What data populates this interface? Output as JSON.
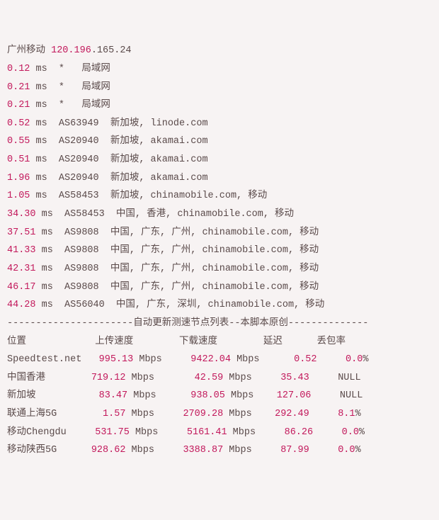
{
  "colors": {
    "background": "#f7f3f3",
    "text": "#5a4a4a",
    "accent": "#c2185b"
  },
  "header": {
    "label": "广州移动",
    "ip_accent": "120.196",
    "ip_rest": ".165.24"
  },
  "hops": [
    {
      "ms": "0.12",
      "rest": " ms  *   局域网"
    },
    {
      "ms": "0.21",
      "rest": " ms  *   局域网"
    },
    {
      "ms": "0.21",
      "rest": " ms  *   局域网"
    },
    {
      "ms": "0.52",
      "rest": " ms  AS63949  新加坡, linode.com"
    },
    {
      "ms": "0.55",
      "rest": " ms  AS20940  新加坡, akamai.com"
    },
    {
      "ms": "0.51",
      "rest": " ms  AS20940  新加坡, akamai.com"
    },
    {
      "ms": "1.96",
      "rest": " ms  AS20940  新加坡, akamai.com"
    },
    {
      "ms": "1.05",
      "rest": " ms  AS58453  新加坡, chinamobile.com, 移动"
    },
    {
      "ms": "34.30",
      "rest": " ms  AS58453  中国, 香港, chinamobile.com, 移动"
    },
    {
      "ms": "37.51",
      "rest": " ms  AS9808  中国, 广东, 广州, chinamobile.com, 移动"
    },
    {
      "ms": "41.33",
      "rest": " ms  AS9808  中国, 广东, 广州, chinamobile.com, 移动"
    },
    {
      "ms": "42.31",
      "rest": " ms  AS9808  中国, 广东, 广州, chinamobile.com, 移动"
    },
    {
      "ms": "46.17",
      "rest": " ms  AS9808  中国, 广东, 广州, chinamobile.com, 移动"
    },
    {
      "ms": "44.28",
      "rest": " ms  AS56040  中国, 广东, 深圳, chinamobile.com, 移动"
    }
  ],
  "divider": "----------------------自动更新测速节点列表--本脚本原创--------------",
  "table": {
    "headers": {
      "loc": "位置",
      "up": "上传速度",
      "down": "下载速度",
      "lat": "延迟",
      "loss": "丢包率"
    },
    "rows": [
      {
        "loc": "Speedtest.net",
        "up_v": "995.13",
        "up_u": " Mbps",
        "dn_v": "9422.04",
        "dn_u": " Mbps",
        "lat": "0.52",
        "loss_v": "0.0",
        "loss_u": "%"
      },
      {
        "loc": "中国香港",
        "up_v": "719.12",
        "up_u": " Mbps",
        "dn_v": "42.59",
        "dn_u": " Mbps",
        "lat": "35.43",
        "loss_v": "NULL",
        "loss_u": ""
      },
      {
        "loc": "新加坡",
        "up_v": "83.47",
        "up_u": " Mbps",
        "dn_v": "938.05",
        "dn_u": " Mbps",
        "lat": "127.06",
        "loss_v": "NULL",
        "loss_u": ""
      },
      {
        "loc": "联通上海5G",
        "up_v": "1.57",
        "up_u": " Mbps",
        "dn_v": "2709.28",
        "dn_u": " Mbps",
        "lat": "292.49",
        "loss_v": "8.1",
        "loss_u": "%"
      },
      {
        "loc": "移动Chengdu",
        "up_v": "531.75",
        "up_u": " Mbps",
        "dn_v": "5161.41",
        "dn_u": " Mbps",
        "lat": "86.26",
        "loss_v": "0.0",
        "loss_u": "%"
      },
      {
        "loc": "移动陕西5G",
        "up_v": "928.62",
        "up_u": " Mbps",
        "dn_v": "3388.87",
        "dn_u": " Mbps",
        "lat": "87.99",
        "loss_v": "0.0",
        "loss_u": "%"
      }
    ]
  }
}
